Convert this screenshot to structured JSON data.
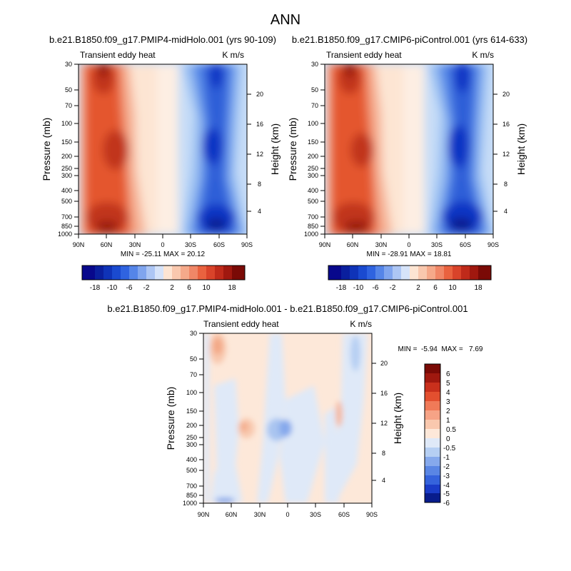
{
  "figure": {
    "title": "ANN"
  },
  "charts": [
    {
      "title": "b.e21.B1850.f09_g17.PMIP4-midHolo.001 (yrs 90-109)",
      "left_label": "Transient eddy heat",
      "units": "K m/s",
      "stats": "MIN = -25.11  MAX = 20.12"
    },
    {
      "title": "b.e21.B1850.f09_g17.CMIP6-piControl.001 (yrs 614-633)",
      "left_label": "Transient eddy heat",
      "units": "K m/s",
      "stats": "MIN = -28.91  MAX = 18.81"
    },
    {
      "title": "b.e21.B1850.f09_g17.PMIP4-midHolo.001 - b.e21.B1850.f09_g17.CMIP6-piControl.001",
      "left_label": "Transient eddy heat",
      "units": "K m/s",
      "stats": "MIN =  -5.94  MAX =   7.69"
    }
  ],
  "chart_data": [
    {
      "type": "heatmap",
      "title": "b.e21.B1850.f09_g17.PMIP4-midHolo.001 (yrs 90-109)",
      "xlabel": "",
      "ylabel": "Pressure (mb)",
      "y2label": "Height (km)",
      "x_ticks": [
        "90N",
        "60N",
        "30N",
        "0",
        "30S",
        "60S",
        "90S"
      ],
      "y_ticks": [
        30,
        50,
        70,
        100,
        150,
        200,
        250,
        300,
        400,
        500,
        700,
        850,
        1000
      ],
      "y2_ticks": [
        4,
        8,
        12,
        16,
        20
      ],
      "y_scale": "log",
      "levels": [
        -18,
        -16,
        -14,
        -12,
        -10,
        -8,
        -6,
        -4,
        -2,
        0,
        2,
        4,
        6,
        8,
        10,
        12,
        14,
        16,
        18
      ],
      "colorbar_labels": [
        "-18",
        "-10",
        "-6",
        "-2",
        "2",
        "6",
        "10",
        "18"
      ],
      "min": -25.11,
      "max": 20.12,
      "features": [
        {
          "lat": 62,
          "p": 180,
          "value": 14
        },
        {
          "lat": 68,
          "p": 35,
          "value": 16
        },
        {
          "lat": 65,
          "p": 850,
          "value": 18
        },
        {
          "lat": -52,
          "p": 180,
          "value": -18
        },
        {
          "lat": -48,
          "p": 40,
          "value": -14
        },
        {
          "lat": -50,
          "p": 850,
          "value": -22
        }
      ]
    },
    {
      "type": "heatmap",
      "title": "b.e21.B1850.f09_g17.CMIP6-piControl.001 (yrs 614-633)",
      "xlabel": "",
      "ylabel": "Pressure (mb)",
      "y2label": "Height (km)",
      "x_ticks": [
        "90N",
        "60N",
        "30N",
        "0",
        "30S",
        "60S",
        "90S"
      ],
      "y_ticks": [
        30,
        50,
        70,
        100,
        150,
        200,
        250,
        300,
        400,
        500,
        700,
        850,
        1000
      ],
      "y2_ticks": [
        4,
        8,
        12,
        16,
        20
      ],
      "y_scale": "log",
      "levels": [
        -18,
        -16,
        -14,
        -12,
        -10,
        -8,
        -6,
        -4,
        -2,
        0,
        2,
        4,
        6,
        8,
        10,
        12,
        14,
        16,
        18
      ],
      "colorbar_labels": [
        "-18",
        "-10",
        "-6",
        "-2",
        "2",
        "6",
        "10",
        "18"
      ],
      "min": -28.91,
      "max": 18.81,
      "features": [
        {
          "lat": 62,
          "p": 180,
          "value": 12
        },
        {
          "lat": 68,
          "p": 35,
          "value": 16
        },
        {
          "lat": 65,
          "p": 850,
          "value": 18
        },
        {
          "lat": -52,
          "p": 180,
          "value": -20
        },
        {
          "lat": -48,
          "p": 40,
          "value": -16
        },
        {
          "lat": -50,
          "p": 850,
          "value": -24
        }
      ]
    },
    {
      "type": "heatmap",
      "title": "b.e21.B1850.f09_g17.PMIP4-midHolo.001 - b.e21.B1850.f09_g17.CMIP6-piControl.001",
      "xlabel": "",
      "ylabel": "Pressure (mb)",
      "y2label": "Height (km)",
      "x_ticks": [
        "90N",
        "60N",
        "30N",
        "0",
        "30S",
        "60S",
        "90S"
      ],
      "y_ticks": [
        30,
        50,
        70,
        100,
        150,
        200,
        250,
        300,
        400,
        500,
        700,
        850,
        1000
      ],
      "y2_ticks": [
        4,
        8,
        12,
        16,
        20
      ],
      "y_scale": "log",
      "levels": [
        -6,
        -5,
        -4,
        -3,
        -2,
        -1,
        -0.5,
        0,
        0.5,
        1,
        2,
        3,
        4,
        5,
        6
      ],
      "colorbar_labels": [
        "6",
        "5",
        "4",
        "3",
        "2",
        "1",
        "0.5",
        "0",
        "-0.5",
        "-1",
        "-2",
        "-3",
        "-4",
        "-5",
        "-6"
      ],
      "min": -5.94,
      "max": 7.69,
      "features": [
        {
          "lat": 75,
          "p": 35,
          "value": 1.5
        },
        {
          "lat": 48,
          "p": 200,
          "value": 1
        },
        {
          "lat": 0,
          "p": 200,
          "value": -1.5
        },
        {
          "lat": -62,
          "p": 300,
          "value": 1.5
        },
        {
          "lat": -72,
          "p": 150,
          "value": -0.8
        }
      ]
    }
  ]
}
